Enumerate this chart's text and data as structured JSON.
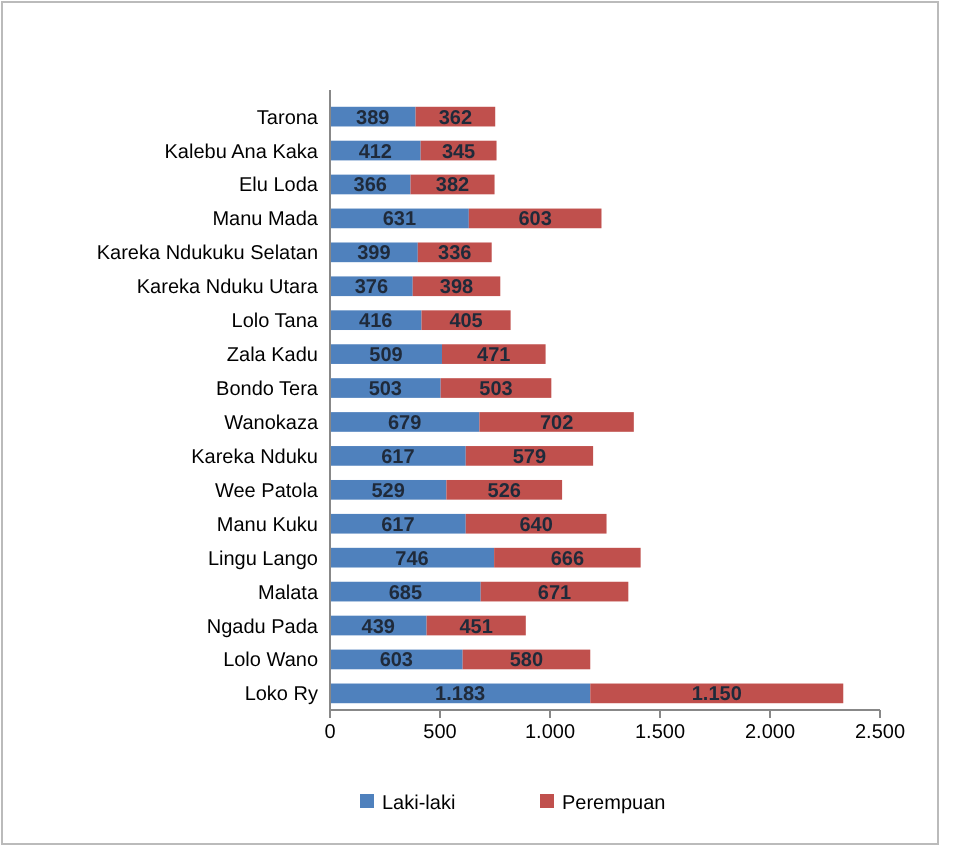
{
  "chart_data": {
    "type": "bar",
    "orientation": "horizontal",
    "stacked": true,
    "categories": [
      "Tarona",
      "Kalebu Ana Kaka",
      "Elu Loda",
      "Manu Mada",
      "Kareka Ndukuku  Selatan",
      "Kareka Nduku  Utara",
      "Lolo Tana",
      "Zala Kadu",
      "Bondo Tera",
      "Wanokaza",
      "Kareka Nduku",
      "Wee Patola",
      "Manu Kuku",
      "Lingu Lango",
      "Malata",
      "Ngadu  Pada",
      "Lolo Wano",
      "Loko Ry"
    ],
    "series": [
      {
        "name": "Laki-laki",
        "color": "#4f81bd",
        "values": [
          389,
          412,
          366,
          631,
          399,
          376,
          416,
          509,
          503,
          679,
          617,
          529,
          617,
          746,
          685,
          439,
          603,
          1183
        ],
        "value_labels": [
          "389",
          "412",
          "366",
          "631",
          "399",
          "376",
          "416",
          "509",
          "503",
          "679",
          "617",
          "529",
          "617",
          "746",
          "685",
          "439",
          "603",
          "1.183"
        ]
      },
      {
        "name": "Perempuan",
        "color": "#c0504d",
        "values": [
          362,
          345,
          382,
          603,
          336,
          398,
          405,
          471,
          503,
          702,
          579,
          526,
          640,
          666,
          671,
          451,
          580,
          1150
        ],
        "value_labels": [
          "362",
          "345",
          "382",
          "603",
          "336",
          "398",
          "405",
          "471",
          "503",
          "702",
          "579",
          "526",
          "640",
          "666",
          "671",
          "451",
          "580",
          "1.150"
        ]
      }
    ],
    "xlim": [
      0,
      2500
    ],
    "xticks": [
      0,
      500,
      {
        "value": 1000,
        "label": "1.000"
      },
      {
        "value": 1500,
        "label": "1.500"
      },
      {
        "value": 2000,
        "label": "2.000"
      },
      {
        "value": 2500,
        "label": "2.500"
      }
    ],
    "legend": "bottom"
  }
}
